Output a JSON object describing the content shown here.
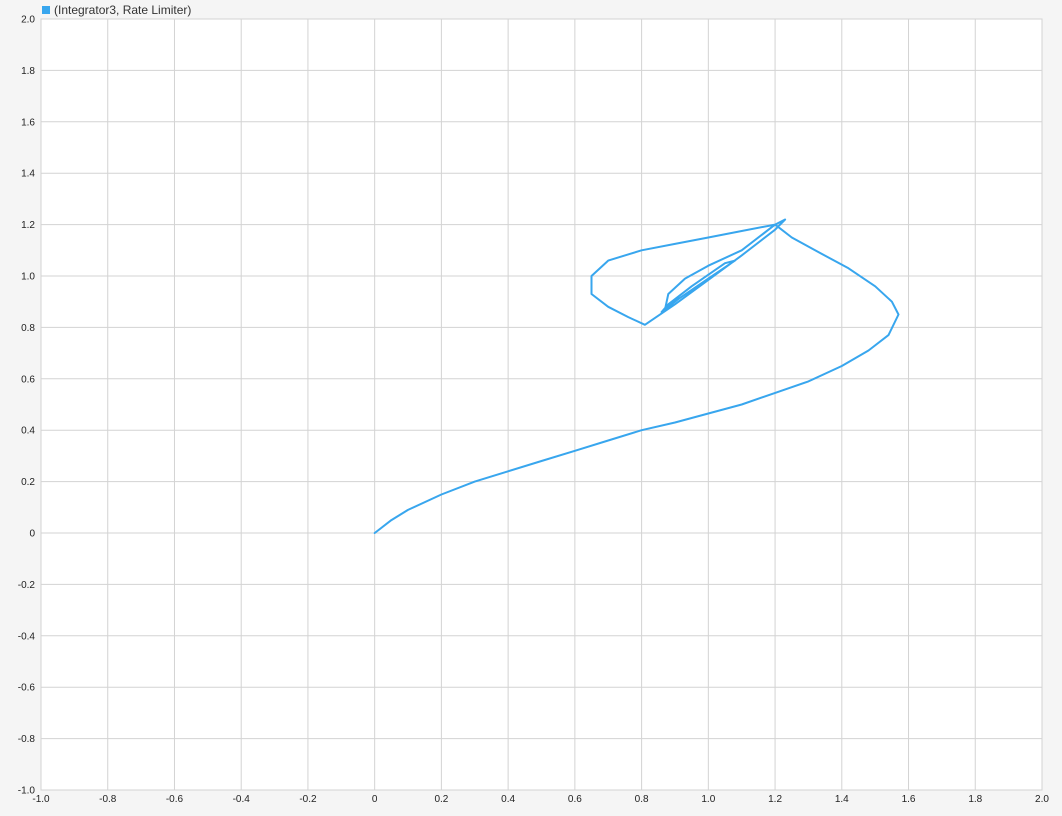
{
  "colors": {
    "background": "#f5f5f5",
    "plot_background": "#ffffff",
    "grid": "#d3d3d3",
    "series": "#38a6ee"
  },
  "chart_data": {
    "type": "line",
    "title": "",
    "xlabel": "",
    "ylabel": "",
    "xlim": [
      -1.0,
      2.0
    ],
    "ylim": [
      -1.0,
      2.0
    ],
    "grid": true,
    "legend_position": "top-left",
    "xticks": [
      "-1.0",
      "-0.8",
      "-0.6",
      "-0.4",
      "-0.2",
      "0",
      "0.2",
      "0.4",
      "0.6",
      "0.8",
      "1.0",
      "1.2",
      "1.4",
      "1.6",
      "1.8",
      "2.0"
    ],
    "yticks": [
      "2.0",
      "1.8",
      "1.6",
      "1.4",
      "1.2",
      "1.0",
      "0.8",
      "0.6",
      "0.4",
      "0.2",
      "0",
      "-0.2",
      "-0.4",
      "-0.6",
      "-0.8",
      "-1.0"
    ],
    "series": [
      {
        "name": "(Integrator3, Rate Limiter)",
        "color": "#38a6ee",
        "points": [
          [
            0.0,
            0.0
          ],
          [
            0.05,
            0.05
          ],
          [
            0.1,
            0.09
          ],
          [
            0.2,
            0.15
          ],
          [
            0.3,
            0.2
          ],
          [
            0.4,
            0.24
          ],
          [
            0.5,
            0.28
          ],
          [
            0.6,
            0.32
          ],
          [
            0.7,
            0.36
          ],
          [
            0.8,
            0.4
          ],
          [
            0.9,
            0.43
          ],
          [
            1.0,
            0.465
          ],
          [
            1.1,
            0.5
          ],
          [
            1.2,
            0.545
          ],
          [
            1.3,
            0.59
          ],
          [
            1.4,
            0.65
          ],
          [
            1.48,
            0.71
          ],
          [
            1.54,
            0.77
          ],
          [
            1.57,
            0.85
          ],
          [
            1.55,
            0.9
          ],
          [
            1.5,
            0.96
          ],
          [
            1.42,
            1.03
          ],
          [
            1.32,
            1.1
          ],
          [
            1.25,
            1.15
          ],
          [
            1.2,
            1.2
          ],
          [
            1.1,
            1.175
          ],
          [
            1.0,
            1.15
          ],
          [
            0.9,
            1.125
          ],
          [
            0.8,
            1.1
          ],
          [
            0.7,
            1.06
          ],
          [
            0.65,
            1.0
          ],
          [
            0.65,
            0.93
          ],
          [
            0.7,
            0.88
          ],
          [
            0.76,
            0.84
          ],
          [
            0.81,
            0.81
          ],
          [
            0.9,
            0.89
          ],
          [
            1.0,
            0.985
          ],
          [
            1.1,
            1.08
          ],
          [
            1.2,
            1.18
          ],
          [
            1.23,
            1.22
          ],
          [
            1.2,
            1.2
          ],
          [
            1.1,
            1.1
          ],
          [
            1.0,
            1.04
          ],
          [
            0.93,
            0.99
          ],
          [
            0.88,
            0.93
          ],
          [
            0.87,
            0.87
          ],
          [
            0.91,
            0.91
          ],
          [
            1.0,
            0.99
          ],
          [
            1.08,
            1.06
          ],
          [
            1.05,
            1.05
          ],
          [
            0.95,
            0.96
          ],
          [
            0.88,
            0.89
          ],
          [
            0.86,
            0.86
          ]
        ]
      }
    ]
  }
}
